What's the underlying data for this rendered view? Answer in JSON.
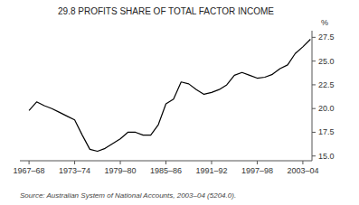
{
  "chart_data": {
    "type": "line",
    "title": "29.8   PROFITS SHARE OF TOTAL FACTOR INCOME",
    "ylabel": "%",
    "annotations": [
      "Source: Australian System of National Accounts, 2003–04 (5204.0)."
    ],
    "x": [
      1967,
      1968,
      1969,
      1970,
      1971,
      1972,
      1973,
      1974,
      1975,
      1976,
      1977,
      1978,
      1979,
      1980,
      1981,
      1982,
      1983,
      1984,
      1985,
      1986,
      1987,
      1988,
      1989,
      1990,
      1991,
      1992,
      1993,
      1994,
      1995,
      1996,
      1997,
      1998,
      1999,
      2000,
      2001,
      2002,
      2003,
      2004
    ],
    "values": [
      19.8,
      20.7,
      20.3,
      20.0,
      19.6,
      19.2,
      18.8,
      17.2,
      15.7,
      15.5,
      15.8,
      16.3,
      16.8,
      17.5,
      17.5,
      17.2,
      17.2,
      18.3,
      20.5,
      21.0,
      22.8,
      22.6,
      22.0,
      21.5,
      21.7,
      22.0,
      22.5,
      23.5,
      23.8,
      23.5,
      23.2,
      23.3,
      23.6,
      24.2,
      24.6,
      25.8,
      26.5,
      27.3
    ],
    "color": "#000000",
    "xlim": [
      1965.8,
      2004.2
    ],
    "xticks": [
      {
        "value": 1967,
        "label": "1967–68"
      },
      {
        "value": 1973,
        "label": "1973–74"
      },
      {
        "value": 1979,
        "label": "1979–80"
      },
      {
        "value": 1985,
        "label": "1985–86"
      },
      {
        "value": 1991,
        "label": "1991–92"
      },
      {
        "value": 1997,
        "label": "1997–98"
      },
      {
        "value": 2003,
        "label": "2003–04"
      }
    ],
    "ylim": [
      14.5,
      28.2
    ],
    "yticks": [
      {
        "value": 15.0,
        "label": "15.0"
      },
      {
        "value": 17.5,
        "label": "17.5"
      },
      {
        "value": 20.0,
        "label": "20.0"
      },
      {
        "value": 22.5,
        "label": "22.5"
      },
      {
        "value": 25.0,
        "label": "25.0"
      },
      {
        "value": 27.5,
        "label": "27.5"
      }
    ],
    "grid": false
  }
}
